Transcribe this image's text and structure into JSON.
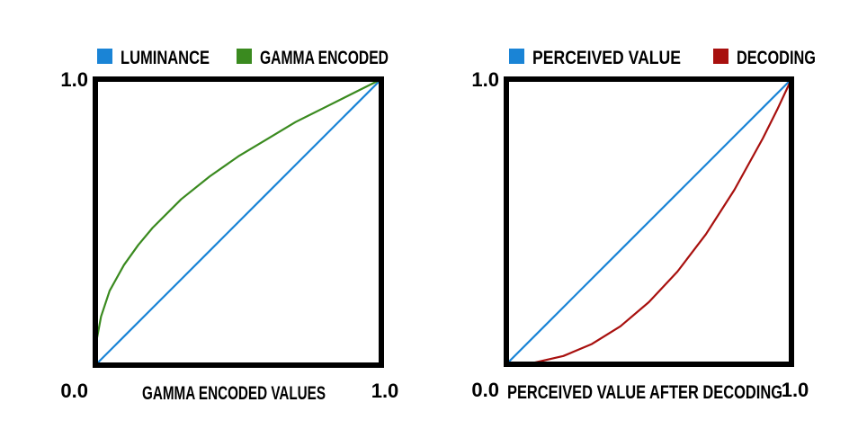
{
  "chart_data": [
    {
      "type": "line",
      "xlabel": "GAMMA ENCODED VALUES",
      "ylabel": "",
      "xlim": [
        0,
        1
      ],
      "ylim": [
        0,
        1
      ],
      "x_tick_labels": [
        "0.0",
        "1.0"
      ],
      "y_tick_labels": [
        "1.0"
      ],
      "grid": false,
      "legend_position": "top",
      "series": [
        {
          "name": "LUMINANCE",
          "color": "#1a84d6",
          "x": [
            0,
            0.1,
            0.2,
            0.3,
            0.4,
            0.5,
            0.6,
            0.7,
            0.8,
            0.9,
            1
          ],
          "y": [
            0,
            0.1,
            0.2,
            0.3,
            0.4,
            0.5,
            0.6,
            0.7,
            0.8,
            0.9,
            1
          ]
        },
        {
          "name": "GAMMA ENCODED",
          "color": "#3a8a1f",
          "x": [
            0,
            0.005,
            0.02,
            0.05,
            0.1,
            0.15,
            0.2,
            0.3,
            0.4,
            0.5,
            0.6,
            0.7,
            0.8,
            0.9,
            1
          ],
          "y": [
            0,
            0.09,
            0.17,
            0.26,
            0.35,
            0.42,
            0.48,
            0.58,
            0.66,
            0.73,
            0.79,
            0.85,
            0.9,
            0.95,
            1
          ]
        }
      ]
    },
    {
      "type": "line",
      "xlabel": "PERCEIVED VALUE AFTER DECODING",
      "ylabel": "",
      "xlim": [
        0,
        1
      ],
      "ylim": [
        0,
        1
      ],
      "x_tick_labels": [
        "0.0",
        "1.0"
      ],
      "y_tick_labels": [
        "1.0"
      ],
      "grid": false,
      "legend_position": "top",
      "series": [
        {
          "name": "PERCEIVED VALUE",
          "color": "#1a84d6",
          "x": [
            0,
            0.1,
            0.2,
            0.3,
            0.4,
            0.5,
            0.6,
            0.7,
            0.8,
            0.9,
            1
          ],
          "y": [
            0,
            0.1,
            0.2,
            0.3,
            0.4,
            0.5,
            0.6,
            0.7,
            0.8,
            0.9,
            1
          ]
        },
        {
          "name": "DECODING",
          "color": "#a8100e",
          "x": [
            0,
            0.1,
            0.2,
            0.3,
            0.4,
            0.5,
            0.6,
            0.7,
            0.8,
            0.9,
            0.95,
            1
          ],
          "y": [
            0,
            0.006,
            0.029,
            0.071,
            0.133,
            0.218,
            0.325,
            0.456,
            0.612,
            0.793,
            0.893,
            1
          ]
        }
      ]
    }
  ]
}
